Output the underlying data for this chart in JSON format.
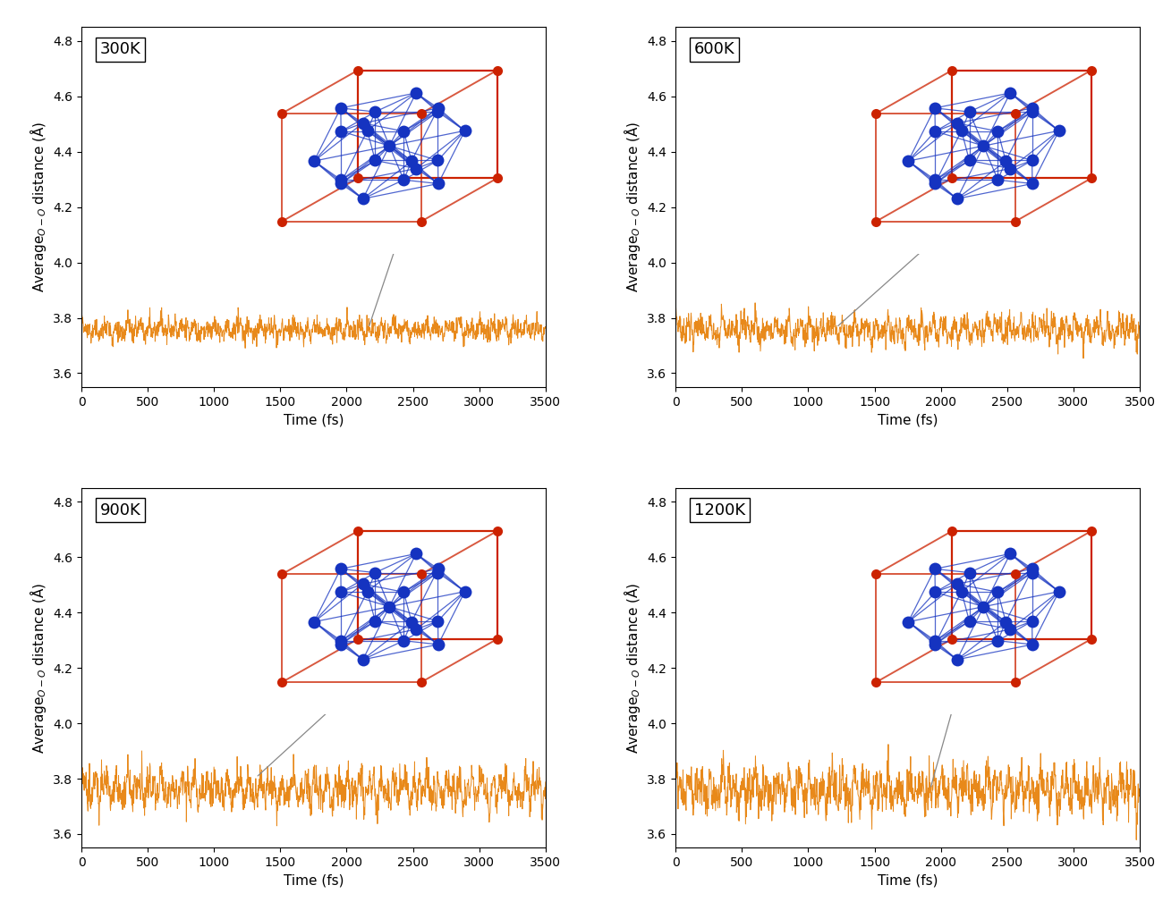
{
  "panels": [
    {
      "label": "300K",
      "row": 0,
      "col": 0,
      "amplitude": 0.025,
      "base": 3.758,
      "noise_std": 0.018,
      "seed": 1
    },
    {
      "label": "600K",
      "row": 0,
      "col": 1,
      "amplitude": 0.038,
      "base": 3.758,
      "noise_std": 0.022,
      "seed": 2
    },
    {
      "label": "900K",
      "row": 1,
      "col": 0,
      "amplitude": 0.055,
      "base": 3.762,
      "noise_std": 0.03,
      "seed": 3
    },
    {
      "label": "1200K",
      "row": 1,
      "col": 1,
      "amplitude": 0.06,
      "base": 3.762,
      "noise_std": 0.035,
      "seed": 4
    }
  ],
  "xlim": [
    0,
    3500
  ],
  "ylim": [
    3.55,
    4.85
  ],
  "xticks": [
    0,
    500,
    1000,
    1500,
    2000,
    2500,
    3000,
    3500
  ],
  "yticks": [
    3.6,
    3.8,
    4.0,
    4.2,
    4.4,
    4.6,
    4.8
  ],
  "xlabel": "Time (fs)",
  "ylabel": "Average$_{O-O}$ distance (Å)",
  "line_color": "#E8891A",
  "line_width": 0.7,
  "background_color": "#ffffff",
  "label_fontsize": 13,
  "axis_fontsize": 11,
  "tick_fontsize": 10,
  "blue_atom": "#1533C0",
  "red_atom": "#CC2200",
  "bond_color_blue": "#1533C0",
  "bond_color_red": "#CC2200"
}
